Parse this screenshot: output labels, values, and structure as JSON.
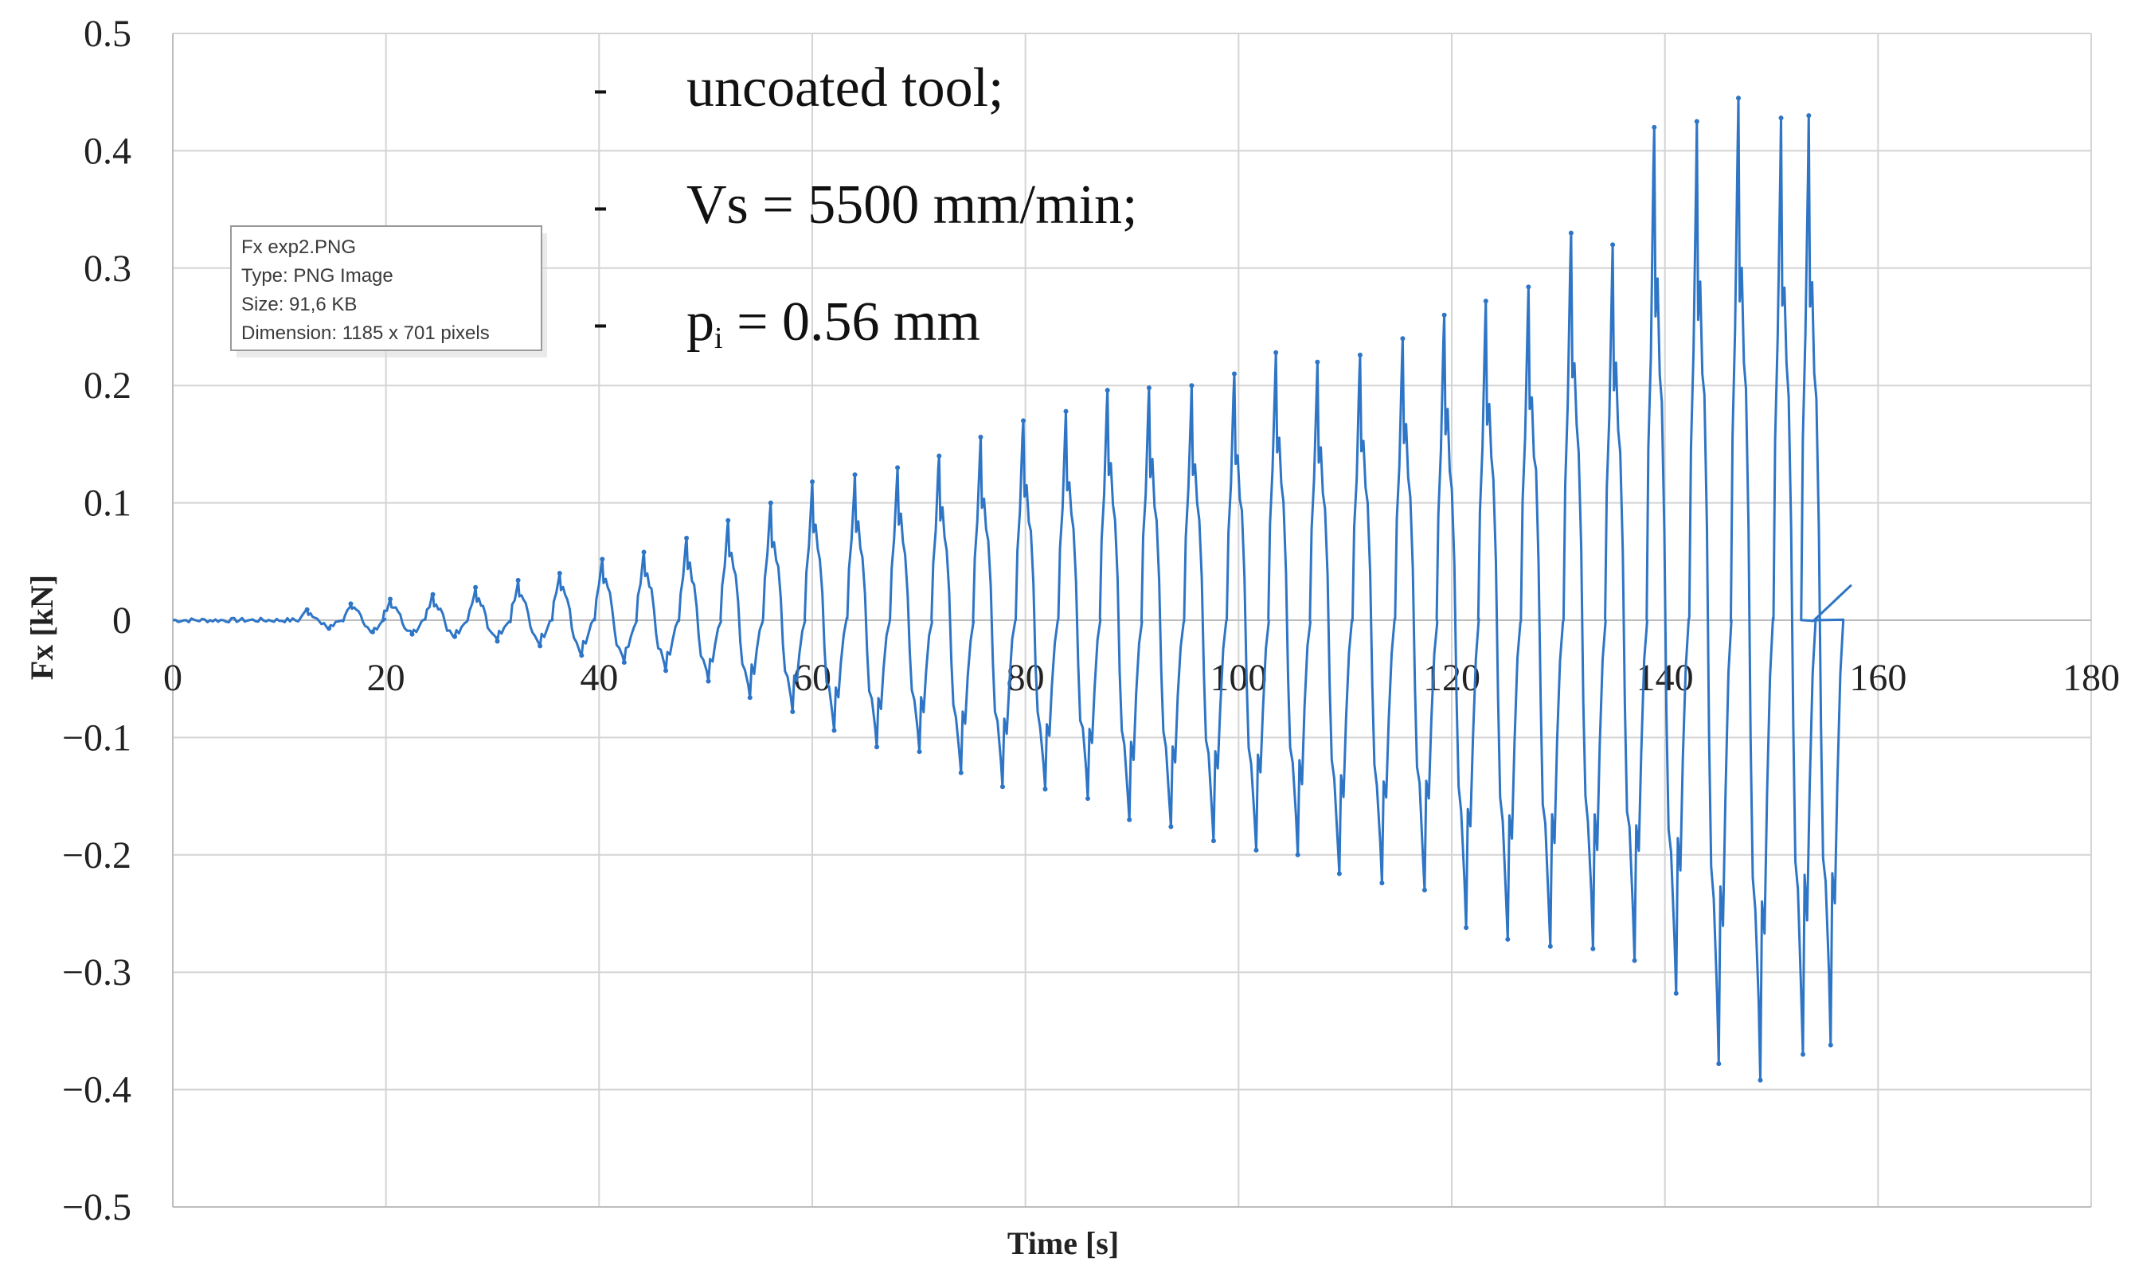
{
  "chart_data": {
    "type": "line",
    "title": "",
    "xlabel": "Time [s]",
    "ylabel": "Fx [kN]",
    "xlim": [
      0,
      180
    ],
    "ylim": [
      -0.5,
      0.5
    ],
    "xticks": [
      0,
      20,
      40,
      60,
      80,
      100,
      120,
      140,
      160,
      180
    ],
    "yticks": [
      0.5,
      0.4,
      0.3,
      0.2,
      0.1,
      0,
      -0.1,
      -0.2,
      -0.3,
      -0.4,
      -0.5
    ],
    "ytick_labels": [
      "0.5",
      "0.4",
      "0.3",
      "0.2",
      "0.1",
      "0",
      "−0.1",
      "−0.2",
      "−0.3",
      "−0.4",
      "−0.5"
    ],
    "grid": true,
    "series": [
      {
        "name": "Fx",
        "color": "#2e75c6",
        "cycle_period_s": 3.95,
        "cycle_start_s": 12,
        "cycle_end_s": 154,
        "approx_peaks": [
          {
            "t": 12.6,
            "max": 0.009,
            "min": -0.007
          },
          {
            "t": 16.7,
            "max": 0.014,
            "min": -0.01
          },
          {
            "t": 20.4,
            "max": 0.018,
            "min": -0.012
          },
          {
            "t": 24.4,
            "max": 0.022,
            "min": -0.014
          },
          {
            "t": 28.4,
            "max": 0.028,
            "min": -0.018
          },
          {
            "t": 32.4,
            "max": 0.034,
            "min": -0.022
          },
          {
            "t": 36.3,
            "max": 0.04,
            "min": -0.03
          },
          {
            "t": 40.3,
            "max": 0.052,
            "min": -0.036
          },
          {
            "t": 44.2,
            "max": 0.058,
            "min": -0.043
          },
          {
            "t": 48.2,
            "max": 0.07,
            "min": -0.052
          },
          {
            "t": 52.1,
            "max": 0.085,
            "min": -0.066
          },
          {
            "t": 56.1,
            "max": 0.1,
            "min": -0.078
          },
          {
            "t": 60.0,
            "max": 0.118,
            "min": -0.094
          },
          {
            "t": 64.0,
            "max": 0.124,
            "min": -0.108
          },
          {
            "t": 68.0,
            "max": 0.13,
            "min": -0.112
          },
          {
            "t": 71.9,
            "max": 0.14,
            "min": -0.13
          },
          {
            "t": 75.8,
            "max": 0.156,
            "min": -0.142
          },
          {
            "t": 79.8,
            "max": 0.17,
            "min": -0.144
          },
          {
            "t": 83.8,
            "max": 0.178,
            "min": -0.152
          },
          {
            "t": 87.7,
            "max": 0.196,
            "min": -0.17
          },
          {
            "t": 91.6,
            "max": 0.198,
            "min": -0.176
          },
          {
            "t": 95.6,
            "max": 0.2,
            "min": -0.188
          },
          {
            "t": 99.6,
            "max": 0.21,
            "min": -0.196
          },
          {
            "t": 103.5,
            "max": 0.228,
            "min": -0.2
          },
          {
            "t": 107.4,
            "max": 0.22,
            "min": -0.216
          },
          {
            "t": 111.4,
            "max": 0.226,
            "min": -0.224
          },
          {
            "t": 115.4,
            "max": 0.24,
            "min": -0.23
          },
          {
            "t": 119.3,
            "max": 0.26,
            "min": -0.262
          },
          {
            "t": 123.2,
            "max": 0.272,
            "min": -0.272
          },
          {
            "t": 127.2,
            "max": 0.284,
            "min": -0.278
          },
          {
            "t": 131.2,
            "max": 0.33,
            "min": -0.28
          },
          {
            "t": 135.1,
            "max": 0.32,
            "min": -0.29
          },
          {
            "t": 139.0,
            "max": 0.42,
            "min": -0.318
          },
          {
            "t": 143.0,
            "max": 0.425,
            "min": -0.378
          },
          {
            "t": 146.9,
            "max": 0.445,
            "min": -0.392
          },
          {
            "t": 150.9,
            "max": 0.428,
            "min": -0.37
          },
          {
            "t": 153.5,
            "max": 0.43,
            "min": -0.362
          }
        ],
        "tail": {
          "from_t": 154,
          "to_t": 157.5,
          "from_val": 0.0,
          "to_val": 0.03
        }
      }
    ],
    "annotations": [
      {
        "bullet": "-",
        "text": "uncoated tool;"
      },
      {
        "bullet": "-",
        "text": "Vs = 5500 mm/min;"
      },
      {
        "bullet": "-",
        "text_main": "p",
        "text_sub": "i",
        "text_rest": " = 0.56 mm"
      }
    ]
  },
  "tooltip": {
    "lines": [
      "Fx exp2.PNG",
      "Type: PNG Image",
      "Size: 91,6 KB",
      "Dimension: 1185 x 701 pixels"
    ]
  }
}
